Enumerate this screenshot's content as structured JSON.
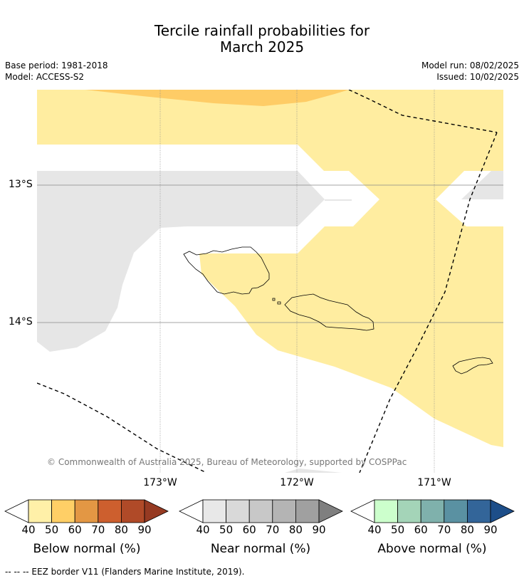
{
  "title": {
    "line1": "Tercile rainfall probabilities for",
    "line2": "March 2025"
  },
  "meta": {
    "base_period": "Base period: 1981-2018",
    "model": "Model: ACCESS-S2",
    "model_run": "Model run: 08/02/2025",
    "issued": "Issued: 10/02/2025"
  },
  "map": {
    "lat_labels": [
      "13°S",
      "14°S"
    ],
    "lon_labels": [
      "173°W",
      "172°W",
      "171°W"
    ],
    "copyright": "© Commonwealth of Australia 2025, Bureau of Meteorology, supported by COSPPac"
  },
  "colorbars": [
    {
      "label": "Below normal (%)",
      "ticks": [
        "40",
        "50",
        "60",
        "70",
        "80",
        "90"
      ],
      "colors": [
        "#fff0a8",
        "#ffcf66",
        "#e39744",
        "#cd5f2e",
        "#b04a28",
        "#963a22"
      ]
    },
    {
      "label": "Near normal (%)",
      "ticks": [
        "40",
        "50",
        "60",
        "70",
        "80",
        "90"
      ],
      "colors": [
        "#e8e8e8",
        "#d9d9d9",
        "#c8c8c8",
        "#b4b4b4",
        "#a0a0a0",
        "#7f7f7f"
      ]
    },
    {
      "label": "Above normal (%)",
      "ticks": [
        "40",
        "50",
        "60",
        "70",
        "80",
        "90"
      ],
      "colors": [
        "#ccffcc",
        "#a4d4b8",
        "#7fb1ac",
        "#5a91a2",
        "#336599",
        "#1d4e89"
      ]
    }
  ],
  "footer": {
    "legend_line": "-- -- -- EEZ border V11 (Flanders Marine Institute, 2019)."
  },
  "colors": {
    "below_40": "#ffeda0",
    "below_50": "#fecc66",
    "near_40": "#e6e6e6"
  }
}
